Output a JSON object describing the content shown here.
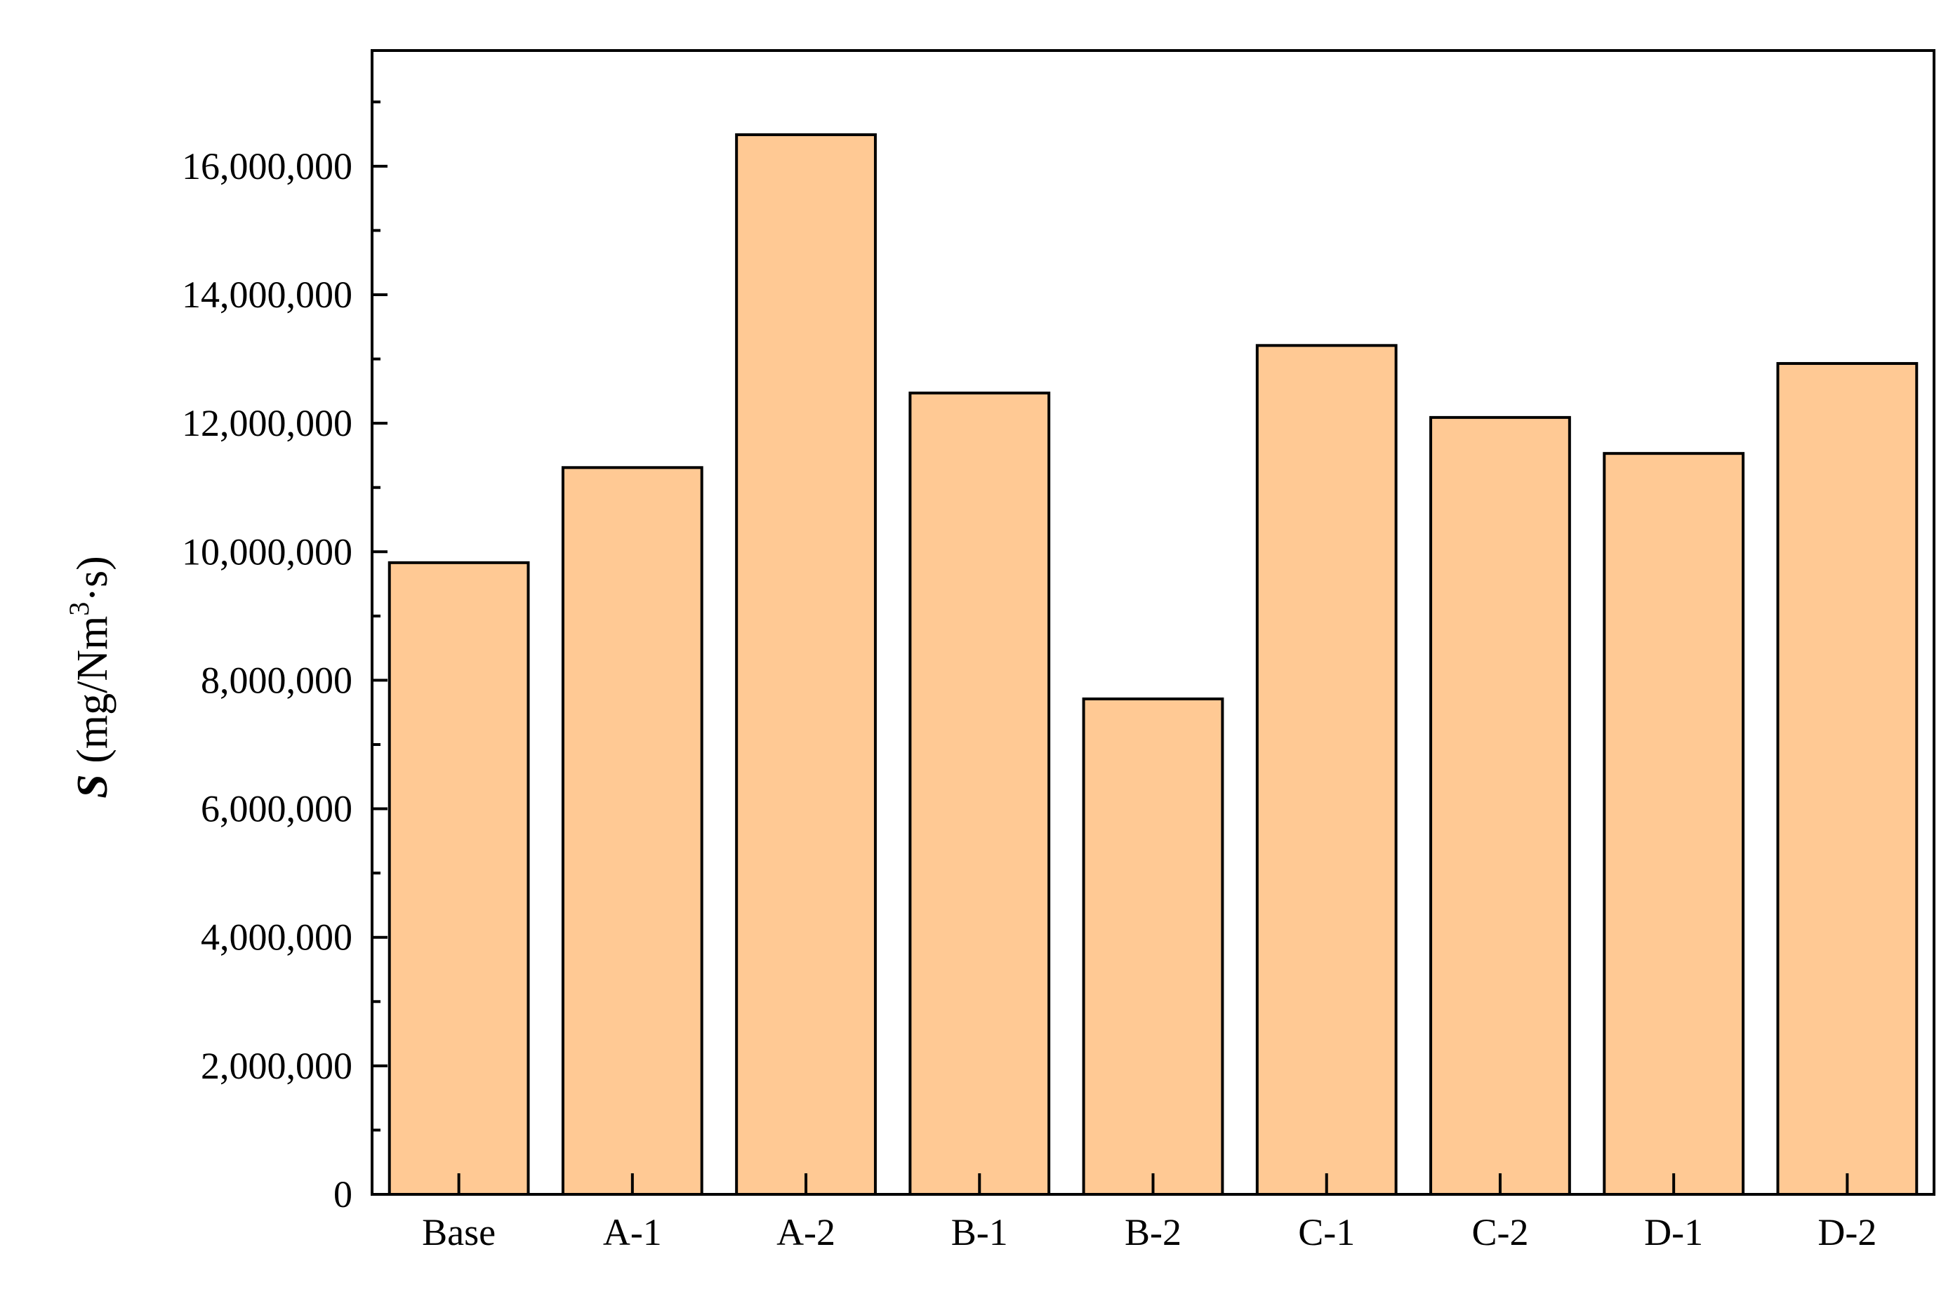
{
  "chart_data": {
    "type": "bar",
    "categories": [
      "Base",
      "A-1",
      "A-2",
      "B-1",
      "B-2",
      "C-1",
      "C-2",
      "D-1",
      "D-2"
    ],
    "values": [
      9830000,
      11310000,
      16490000,
      12470000,
      7710000,
      13210000,
      12090000,
      11530000,
      12930000
    ],
    "ylabel": {
      "symbol": "S",
      "unit_prefix": " (mg/Nm",
      "unit_sup": "3",
      "unit_suffix": "·s)"
    },
    "ylim": [
      0,
      17800000
    ],
    "yticks": [
      0,
      2000000,
      4000000,
      6000000,
      8000000,
      10000000,
      12000000,
      14000000,
      16000000
    ],
    "ytick_labels": [
      "0",
      "2,000,000",
      "4,000,000",
      "6,000,000",
      "8,000,000",
      "10,000,000",
      "12,000,000",
      "14,000,000",
      "16,000,000"
    ],
    "bar_color": "#FFC994",
    "edge_color": "#000000",
    "grid": false,
    "legend": "none"
  }
}
